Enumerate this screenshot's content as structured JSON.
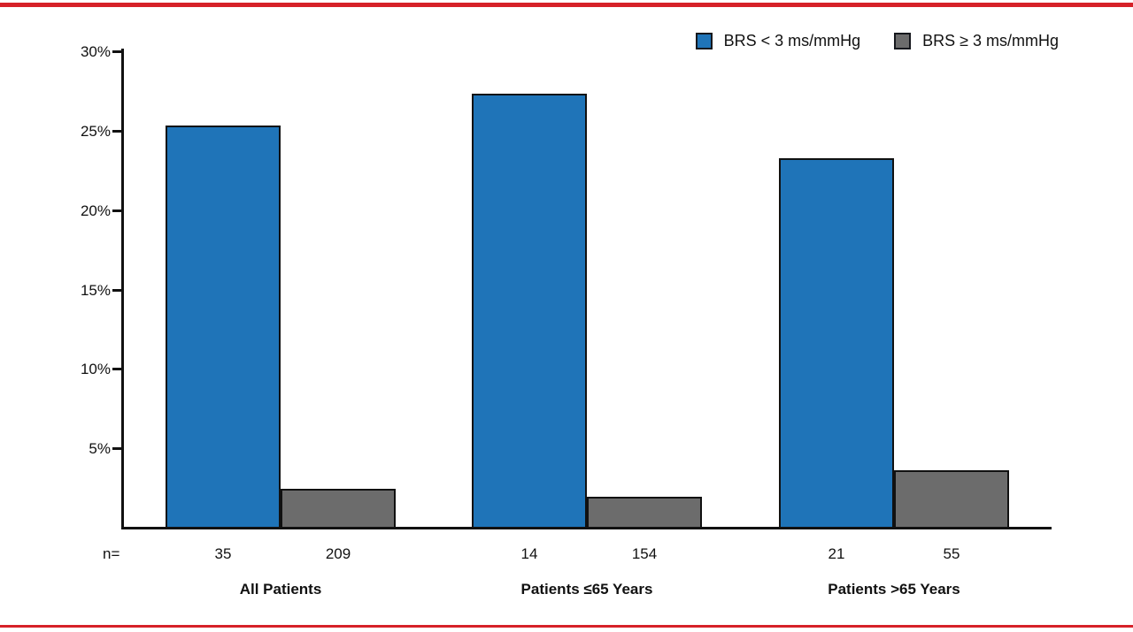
{
  "figure": {
    "frame_rule_color": "#d62128",
    "background": "#ffffff"
  },
  "chart_data": {
    "type": "bar",
    "title": "",
    "categories": [
      "All Patients",
      "Patients ≤65 Years",
      "Patients >65 Years"
    ],
    "n_label": "n=",
    "series": [
      {
        "name": "BRS < 3 ms/mmHg",
        "color": "#1f74b8",
        "values": [
          25.4,
          27.4,
          23.3
        ],
        "n": [
          35,
          14,
          21
        ]
      },
      {
        "name": "BRS ≥ 3 ms/mmHg",
        "color": "#6c6c6c",
        "values": [
          2.5,
          2.0,
          3.7
        ],
        "n": [
          209,
          154,
          55
        ]
      }
    ],
    "ylabel": "",
    "yticks": [
      5,
      10,
      15,
      20,
      25,
      30
    ],
    "ytick_suffix": "%",
    "ylim": [
      0,
      30
    ],
    "grid": false,
    "legend_position": "top-right",
    "bar_edge_color": "#111111"
  }
}
